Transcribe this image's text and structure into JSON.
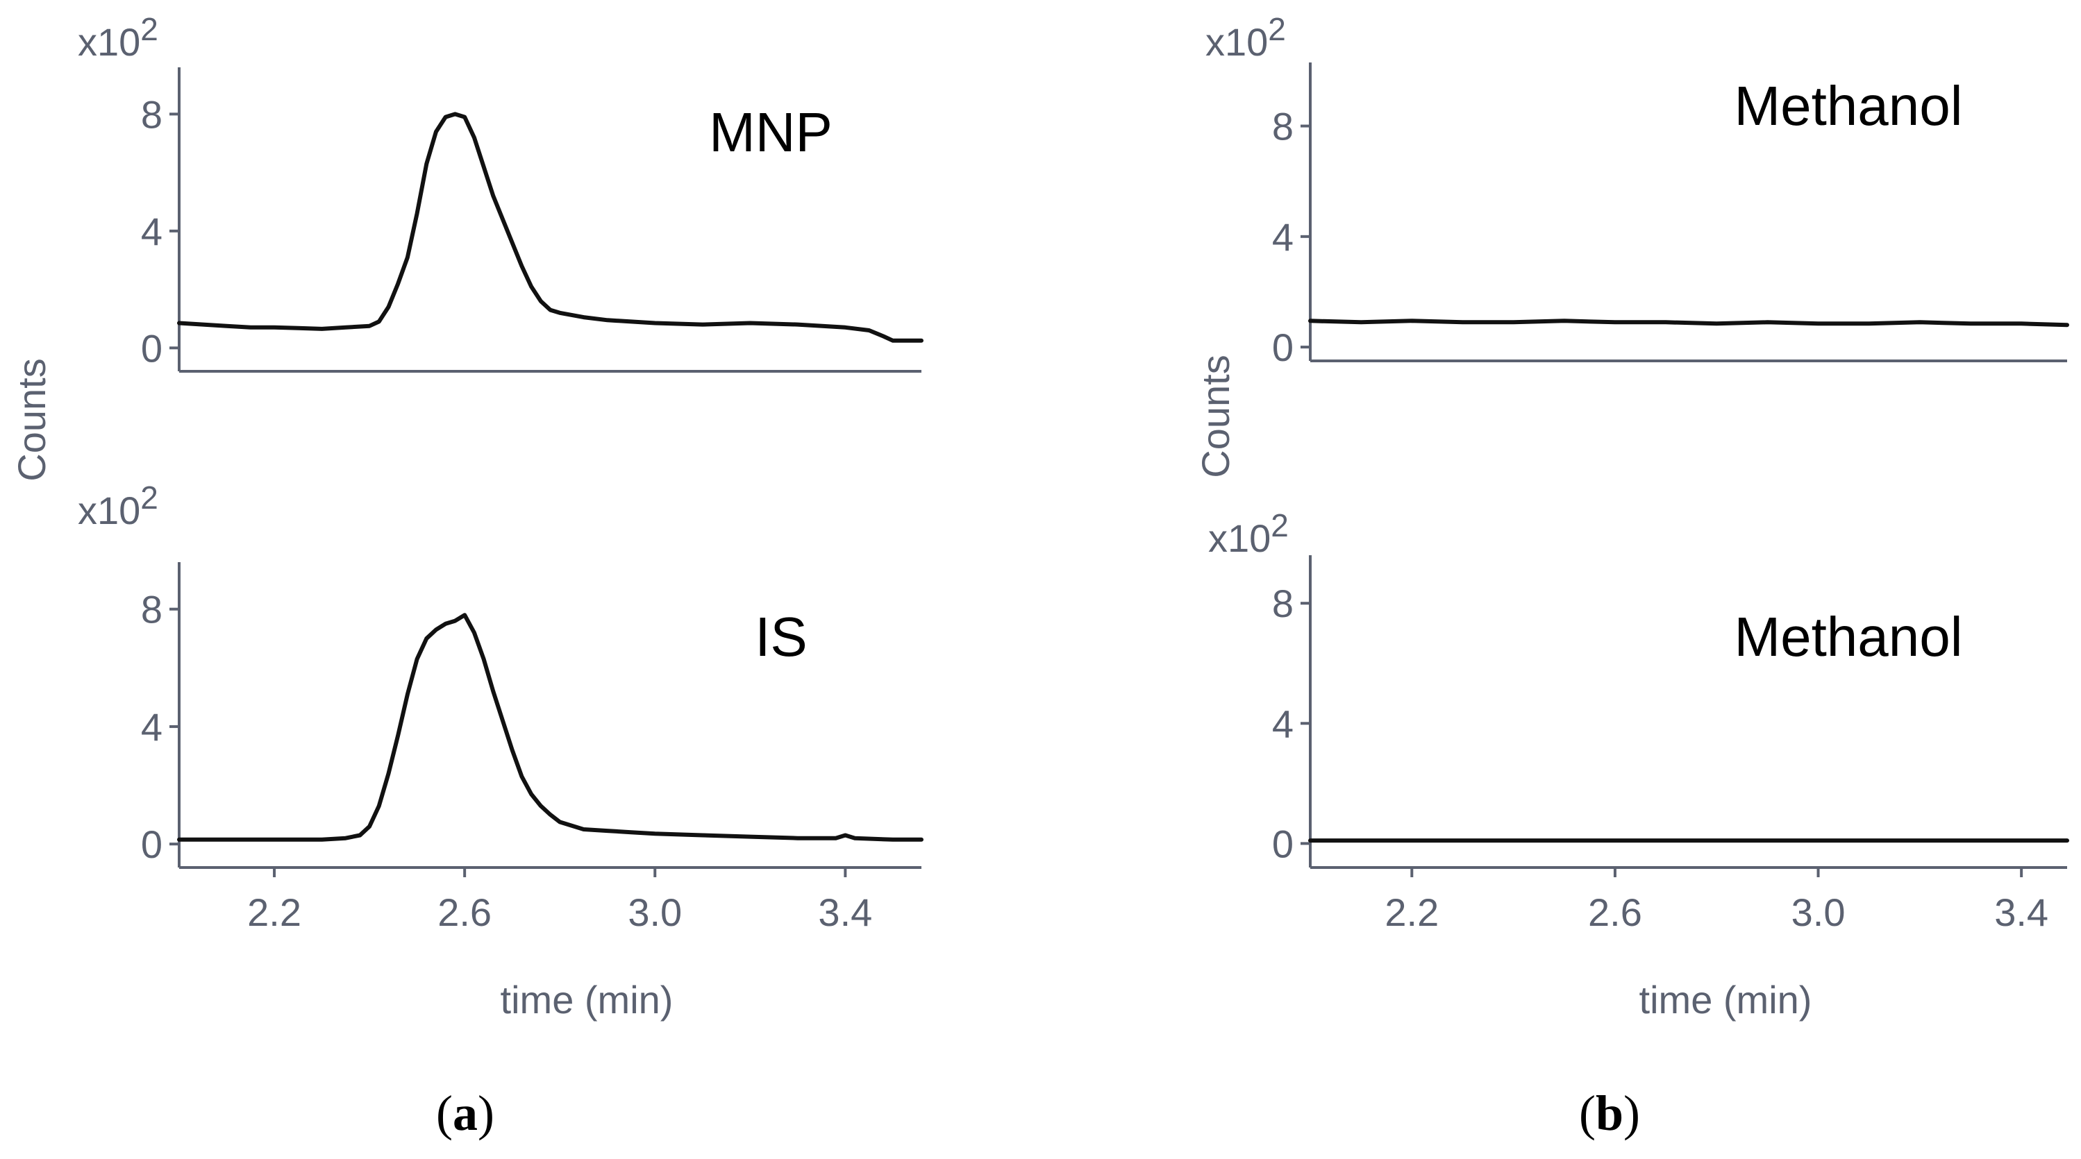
{
  "figure": {
    "caption_a": {
      "open": "(",
      "letter": "a",
      "close": ")"
    },
    "caption_b": {
      "open": "(",
      "letter": "b",
      "close": ")"
    }
  },
  "colors": {
    "axis": "#5b6170",
    "trace": "#111111",
    "text": "#000000"
  },
  "chart_data": [
    {
      "id": "a-top",
      "type": "line",
      "title": "MNP",
      "ylabel": "Counts",
      "xlabel": "",
      "multiplier": {
        "base": "x10",
        "exp": "2"
      },
      "xlim": [
        2.0,
        3.56
      ],
      "ylim": [
        -0.8,
        9.6
      ],
      "yticks": [
        {
          "value": 0,
          "label": "0"
        },
        {
          "value": 4,
          "label": "4"
        },
        {
          "value": 8,
          "label": "8"
        }
      ],
      "xticks": [],
      "series": [
        {
          "name": "MNP",
          "x": [
            2.0,
            2.05,
            2.1,
            2.15,
            2.2,
            2.25,
            2.3,
            2.35,
            2.4,
            2.42,
            2.44,
            2.46,
            2.48,
            2.5,
            2.52,
            2.54,
            2.56,
            2.58,
            2.6,
            2.62,
            2.64,
            2.66,
            2.68,
            2.7,
            2.72,
            2.74,
            2.76,
            2.78,
            2.8,
            2.85,
            2.9,
            2.95,
            3.0,
            3.1,
            3.2,
            3.3,
            3.4,
            3.45,
            3.48,
            3.5,
            3.56
          ],
          "y": [
            0.85,
            0.8,
            0.75,
            0.7,
            0.7,
            0.68,
            0.65,
            0.7,
            0.75,
            0.9,
            1.4,
            2.2,
            3.1,
            4.6,
            6.3,
            7.4,
            7.9,
            8.0,
            7.9,
            7.2,
            6.2,
            5.2,
            4.4,
            3.6,
            2.8,
            2.1,
            1.6,
            1.3,
            1.2,
            1.05,
            0.95,
            0.9,
            0.85,
            0.8,
            0.85,
            0.8,
            0.7,
            0.6,
            0.4,
            0.25,
            0.25
          ]
        }
      ]
    },
    {
      "id": "a-bottom",
      "type": "line",
      "title": "IS",
      "ylabel": "",
      "xlabel": "time (min)",
      "multiplier": {
        "base": "x10",
        "exp": "2"
      },
      "xlim": [
        2.0,
        3.56
      ],
      "ylim": [
        -0.8,
        9.6
      ],
      "yticks": [
        {
          "value": 0,
          "label": "0"
        },
        {
          "value": 4,
          "label": "4"
        },
        {
          "value": 8,
          "label": "8"
        }
      ],
      "xticks": [
        {
          "value": 2.2,
          "label": "2.2"
        },
        {
          "value": 2.6,
          "label": "2.6"
        },
        {
          "value": 3.0,
          "label": "3.0"
        },
        {
          "value": 3.4,
          "label": "3.4"
        }
      ],
      "series": [
        {
          "name": "IS",
          "x": [
            2.0,
            2.1,
            2.2,
            2.3,
            2.35,
            2.38,
            2.4,
            2.42,
            2.44,
            2.46,
            2.48,
            2.5,
            2.52,
            2.54,
            2.56,
            2.58,
            2.6,
            2.62,
            2.64,
            2.66,
            2.68,
            2.7,
            2.72,
            2.74,
            2.76,
            2.78,
            2.8,
            2.85,
            2.9,
            2.95,
            3.0,
            3.1,
            3.2,
            3.3,
            3.38,
            3.4,
            3.42,
            3.5,
            3.56
          ],
          "y": [
            0.15,
            0.15,
            0.15,
            0.15,
            0.2,
            0.3,
            0.6,
            1.3,
            2.4,
            3.7,
            5.1,
            6.3,
            7.0,
            7.3,
            7.5,
            7.6,
            7.8,
            7.2,
            6.3,
            5.2,
            4.2,
            3.2,
            2.3,
            1.7,
            1.3,
            1.0,
            0.75,
            0.5,
            0.45,
            0.4,
            0.35,
            0.3,
            0.25,
            0.2,
            0.2,
            0.3,
            0.2,
            0.15,
            0.15
          ]
        }
      ]
    },
    {
      "id": "b-top",
      "type": "line",
      "title": "Methanol",
      "ylabel": "Counts",
      "xlabel": "",
      "multiplier": {
        "base": "x10",
        "exp": "2"
      },
      "xlim": [
        2.0,
        3.49
      ],
      "ylim": [
        -0.5,
        10.3
      ],
      "yticks": [
        {
          "value": 0,
          "label": "0"
        },
        {
          "value": 4,
          "label": "4"
        },
        {
          "value": 8,
          "label": "8"
        }
      ],
      "xticks": [],
      "series": [
        {
          "name": "Methanol",
          "x": [
            2.0,
            2.1,
            2.2,
            2.3,
            2.4,
            2.5,
            2.6,
            2.7,
            2.8,
            2.9,
            3.0,
            3.1,
            3.2,
            3.3,
            3.4,
            3.49
          ],
          "y": [
            0.95,
            0.9,
            0.95,
            0.9,
            0.9,
            0.95,
            0.9,
            0.9,
            0.85,
            0.9,
            0.85,
            0.85,
            0.9,
            0.85,
            0.85,
            0.8
          ]
        }
      ]
    },
    {
      "id": "b-bottom",
      "type": "line",
      "title": "Methanol",
      "ylabel": "",
      "xlabel": "time (min)",
      "multiplier": {
        "base": "x10",
        "exp": "2"
      },
      "xlim": [
        2.0,
        3.49
      ],
      "ylim": [
        -0.8,
        9.6
      ],
      "yticks": [
        {
          "value": 0,
          "label": "0"
        },
        {
          "value": 4,
          "label": "4"
        },
        {
          "value": 8,
          "label": "8"
        }
      ],
      "xticks": [
        {
          "value": 2.2,
          "label": "2.2"
        },
        {
          "value": 2.6,
          "label": "2.6"
        },
        {
          "value": 3.0,
          "label": "3.0"
        },
        {
          "value": 3.4,
          "label": "3.4"
        }
      ],
      "series": [
        {
          "name": "Methanol",
          "x": [
            2.0,
            3.49
          ],
          "y": [
            0.1,
            0.1
          ]
        }
      ]
    }
  ]
}
